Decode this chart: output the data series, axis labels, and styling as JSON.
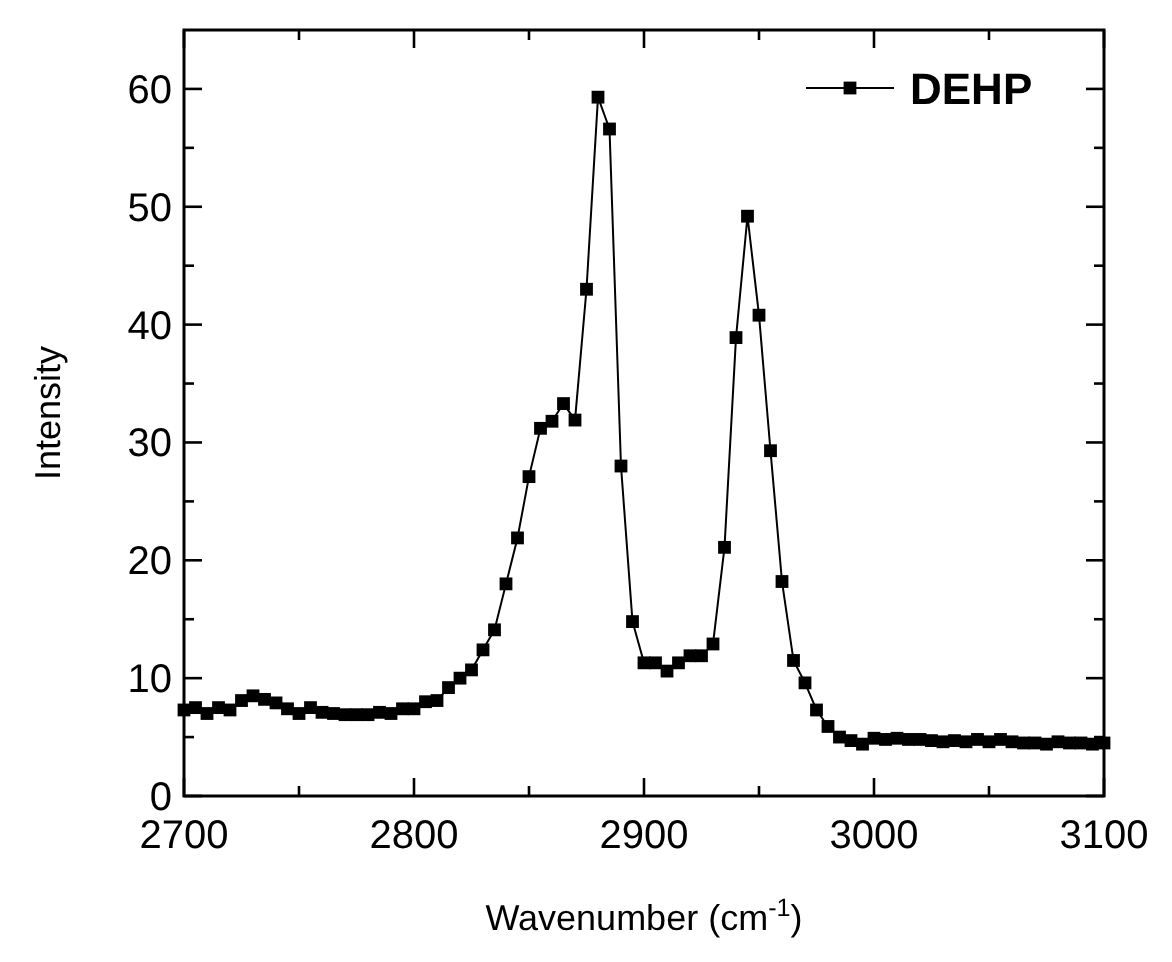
{
  "chart_data": {
    "type": "line",
    "xlabel": "Wavenumber (cm$^{-1}$)",
    "ylabel": "Intensity",
    "x": [
      2700,
      2705,
      2710,
      2715,
      2720,
      2725,
      2730,
      2735,
      2740,
      2745,
      2750,
      2755,
      2760,
      2765,
      2770,
      2775,
      2780,
      2785,
      2790,
      2795,
      2800,
      2805,
      2810,
      2815,
      2820,
      2825,
      2830,
      2835,
      2840,
      2845,
      2850,
      2855,
      2860,
      2865,
      2870,
      2875,
      2880,
      2885,
      2890,
      2895,
      2900,
      2905,
      2910,
      2915,
      2920,
      2925,
      2930,
      2935,
      2940,
      2945,
      2950,
      2955,
      2960,
      2965,
      2970,
      2975,
      2980,
      2985,
      2990,
      2995,
      3000,
      3005,
      3010,
      3015,
      3020,
      3025,
      3030,
      3035,
      3040,
      3045,
      3050,
      3055,
      3060,
      3065,
      3070,
      3075,
      3080,
      3085,
      3090,
      3095,
      3100
    ],
    "series": [
      {
        "name": "DEHP",
        "color": "#000000",
        "values": [
          7.3,
          7.5,
          7.0,
          7.5,
          7.3,
          8.1,
          8.5,
          8.2,
          7.9,
          7.4,
          7.0,
          7.5,
          7.1,
          7.0,
          6.9,
          6.9,
          6.9,
          7.1,
          7.0,
          7.4,
          7.4,
          8.0,
          8.1,
          9.2,
          10.0,
          10.7,
          12.4,
          14.1,
          18.0,
          21.9,
          27.1,
          31.2,
          31.8,
          33.3,
          31.9,
          43.0,
          59.3,
          56.6,
          28.0,
          14.8,
          11.3,
          11.3,
          10.6,
          11.3,
          11.9,
          11.9,
          12.9,
          21.1,
          38.9,
          49.2,
          40.8,
          29.3,
          18.2,
          11.5,
          9.6,
          7.3,
          5.9,
          5.0,
          4.7,
          4.4,
          4.9,
          4.8,
          4.9,
          4.8,
          4.8,
          4.7,
          4.6,
          4.7,
          4.6,
          4.8,
          4.6,
          4.8,
          4.6,
          4.5,
          4.5,
          4.4,
          4.6,
          4.5,
          4.5,
          4.4,
          4.5
        ]
      }
    ],
    "xlim": [
      2700,
      3100
    ],
    "ylim": [
      0,
      65
    ],
    "xticks": [
      2700,
      {
        "value": 2750,
        "label": null
      },
      2800,
      {
        "value": 2850,
        "label": null
      },
      2900,
      {
        "value": 2950,
        "label": null
      },
      3000,
      {
        "value": 3050,
        "label": null
      },
      3100
    ],
    "yticks": [
      0,
      {
        "value": 5,
        "label": null
      },
      10,
      {
        "value": 15,
        "label": null
      },
      20,
      {
        "value": 25,
        "label": null
      },
      30,
      {
        "value": 35,
        "label": null
      },
      40,
      {
        "value": 45,
        "label": null
      },
      50,
      {
        "value": 55,
        "label": null
      },
      60
    ],
    "marker": "square",
    "line_style": "solid",
    "legend": "top right",
    "grid": false
  }
}
